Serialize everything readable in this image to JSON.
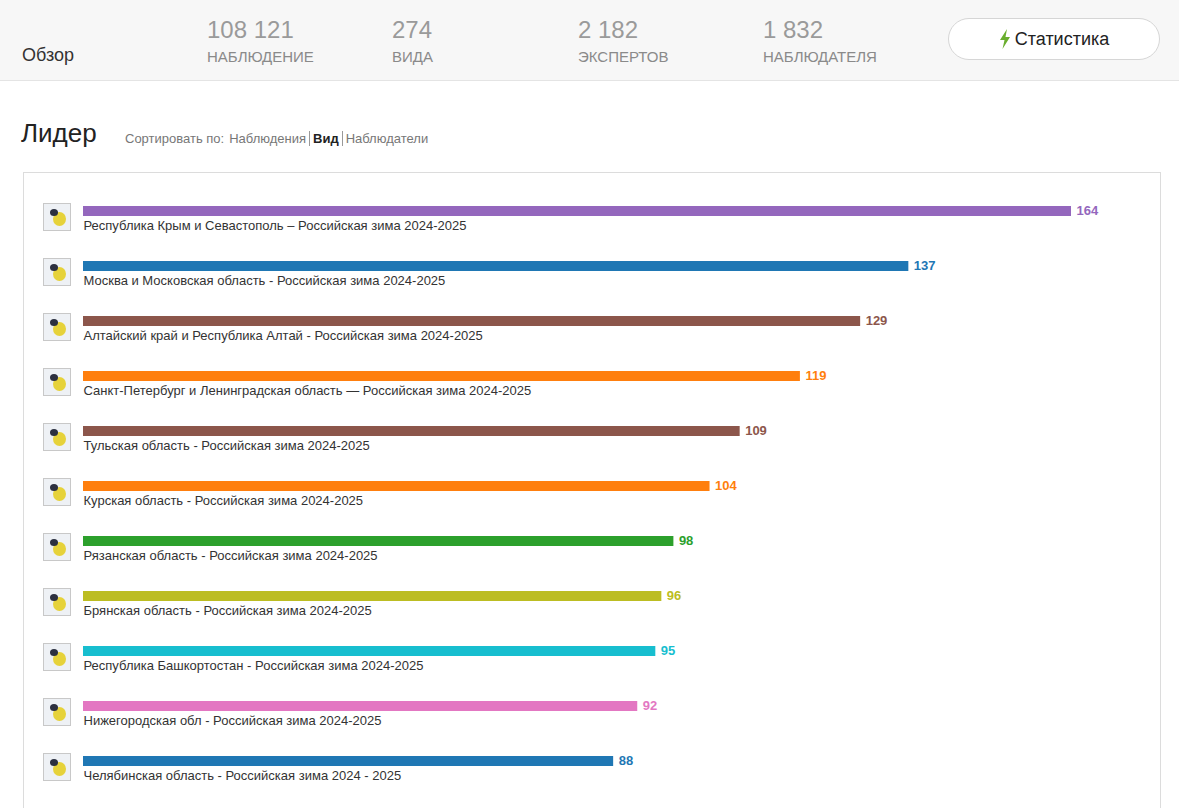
{
  "header": {
    "title": "Обзор",
    "stats": [
      {
        "value": "108 121",
        "label": "НАБЛЮДЕНИЕ"
      },
      {
        "value": "274",
        "label": "ВИДА"
      },
      {
        "value": "2 182",
        "label": "ЭКСПЕРТОВ"
      },
      {
        "value": "1 832",
        "label": "НАБЛЮДАТЕЛЯ"
      }
    ],
    "button": "Статистика"
  },
  "leaderboard": {
    "title": "Лидер",
    "sort_label": "Сортировать по:",
    "sort_options": [
      "Наблюдения",
      "Вид",
      "Наблюдатели"
    ],
    "sort_active": "Вид"
  },
  "chart_data": {
    "type": "bar",
    "orientation": "horizontal",
    "categories": [
      "Республика Крым и Севастополь – Российская зима 2024-2025",
      "Москва и Московская область - Российская зима 2024-2025",
      "Алтайский край и Республика Алтай - Российская зима 2024-2025",
      "Санкт-Петербург и Ленинградская область — Российская зима 2024-2025",
      "Тульская область - Российская зима 2024-2025",
      "Курская область - Российская зима 2024-2025",
      "Рязанская область - Российская зима 2024-2025",
      "Брянская область - Российская зима 2024-2025",
      "Республика Башкортостан - Российская зима 2024-2025",
      "Нижегородская обл - Российская зима 2024-2025",
      "Челябинская область - Российская зима 2024 - 2025"
    ],
    "values": [
      164,
      137,
      129,
      119,
      109,
      104,
      98,
      96,
      95,
      92,
      88
    ],
    "colors": [
      "#9467bd",
      "#1f77b4",
      "#8c564b",
      "#ff7f0e",
      "#8c564b",
      "#ff7f0e",
      "#2ca02c",
      "#bcbd22",
      "#17becf",
      "#e377c2",
      "#1f77b4"
    ],
    "xlim": [
      0,
      164
    ],
    "data_labels": true,
    "tick_labels": false
  }
}
